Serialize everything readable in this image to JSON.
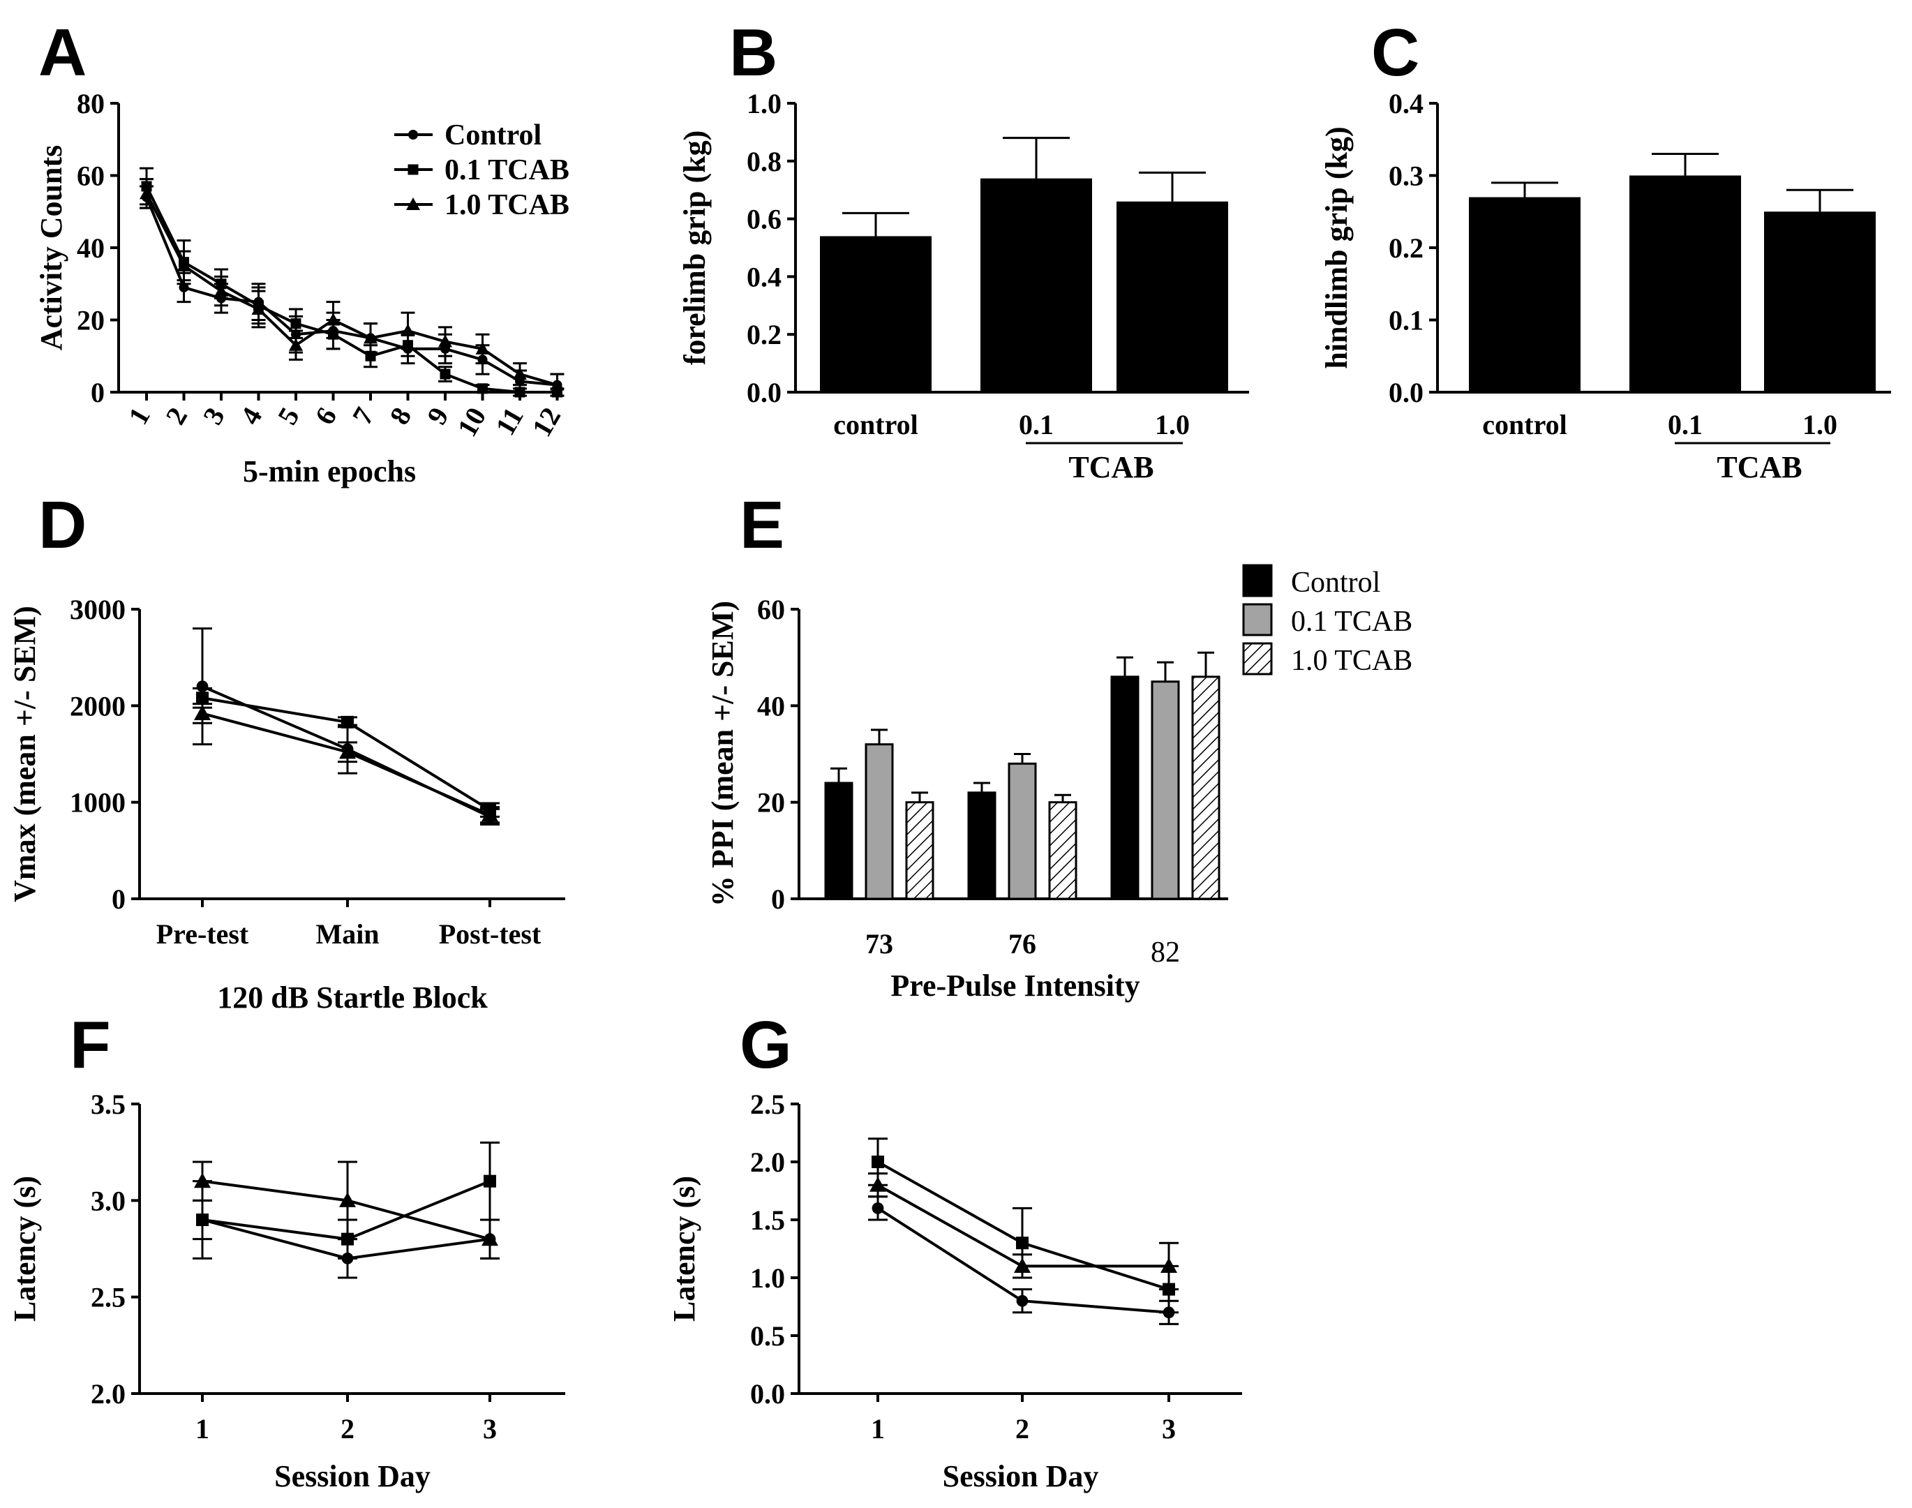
{
  "chart_data": [
    {
      "panel": "A",
      "type": "line",
      "xlabel": "5-min epochs",
      "ylabel": "Activity Counts",
      "ylim": [
        0,
        80
      ],
      "yticks": [
        0,
        20,
        40,
        60,
        80
      ],
      "x": [
        1,
        2,
        3,
        4,
        5,
        6,
        7,
        8,
        9,
        10,
        11,
        12
      ],
      "x_tick_labels": [
        "1",
        "2",
        "3",
        "4",
        "5",
        "6",
        "7",
        "8",
        "9",
        "10",
        "11",
        "12"
      ],
      "legend": "top-right",
      "series": [
        {
          "name": "Control",
          "marker": "circle",
          "values": [
            54,
            29,
            26,
            25,
            16,
            17,
            15,
            12,
            12,
            9,
            3,
            2
          ],
          "errors": [
            3,
            4,
            4,
            5,
            5,
            5,
            4,
            4,
            4,
            4,
            3,
            3
          ]
        },
        {
          "name": "0.1 TCAB",
          "marker": "square",
          "values": [
            57,
            36,
            30,
            24,
            19,
            16,
            10,
            13,
            5,
            1,
            0,
            0
          ],
          "errors": [
            5,
            6,
            4,
            5,
            4,
            4,
            3,
            3,
            2,
            1,
            1,
            1
          ]
        },
        {
          "name": "1.0 TCAB",
          "marker": "triangle",
          "values": [
            55,
            35,
            28,
            23,
            13,
            20,
            15,
            17,
            14,
            12,
            5,
            2
          ],
          "errors": [
            4,
            4,
            4,
            5,
            4,
            5,
            4,
            5,
            4,
            4,
            3,
            3
          ]
        }
      ]
    },
    {
      "panel": "B",
      "type": "bar",
      "ylabel": "forelimb grip (kg)",
      "ylim": [
        0,
        1.0
      ],
      "yticks": [
        "0.0",
        "0.2",
        "0.4",
        "0.6",
        "0.8",
        "1.0"
      ],
      "categories": [
        "control",
        "0.1",
        "1.0"
      ],
      "group_label": "TCAB",
      "values": [
        0.54,
        0.74,
        0.66
      ],
      "errors": [
        0.08,
        0.14,
        0.1
      ]
    },
    {
      "panel": "C",
      "type": "bar",
      "ylabel": "hindlimb grip (kg)",
      "ylim": [
        0,
        0.4
      ],
      "yticks": [
        "0.0",
        "0.1",
        "0.2",
        "0.3",
        "0.4"
      ],
      "categories": [
        "control",
        "0.1",
        "1.0"
      ],
      "group_label": "TCAB",
      "values": [
        0.27,
        0.3,
        0.25
      ],
      "errors": [
        0.02,
        0.03,
        0.03
      ]
    },
    {
      "panel": "D",
      "type": "line",
      "xlabel": "120 dB Startle Block",
      "ylabel": "Vmax (mean +/- SEM)",
      "ylim": [
        0,
        3000
      ],
      "yticks": [
        0,
        1000,
        2000,
        3000
      ],
      "categories": [
        "Pre-test",
        "Main",
        "Post-test"
      ],
      "series": [
        {
          "name": "Control",
          "marker": "circle",
          "values": [
            2200,
            1550,
            850
          ],
          "errors": [
            600,
            250,
            80
          ]
        },
        {
          "name": "0.1 TCAB",
          "marker": "square",
          "values": [
            2080,
            1830,
            920
          ],
          "errors": [
            100,
            50,
            70
          ]
        },
        {
          "name": "1.0 TCAB",
          "marker": "triangle",
          "values": [
            1920,
            1520,
            870
          ],
          "errors": [
            100,
            100,
            80
          ]
        }
      ]
    },
    {
      "panel": "E",
      "type": "bar",
      "xlabel": "Pre-Pulse Intensity",
      "ylabel": "% PPI (mean +/- SEM)",
      "ylim": [
        0,
        60
      ],
      "yticks": [
        0,
        20,
        40,
        60
      ],
      "categories": [
        "73",
        "76",
        "82"
      ],
      "legend": "top-right",
      "series": [
        {
          "name": "Control",
          "fill": "#000000",
          "values": [
            24,
            22,
            46
          ],
          "errors": [
            3,
            2,
            4
          ]
        },
        {
          "name": "0.1 TCAB",
          "fill": "#a3a3a3",
          "values": [
            32,
            28,
            45
          ],
          "errors": [
            3,
            2,
            4
          ]
        },
        {
          "name": "1.0 TCAB",
          "fill": "hatch",
          "values": [
            20,
            20,
            46
          ],
          "errors": [
            2,
            1.5,
            5
          ]
        }
      ]
    },
    {
      "panel": "F",
      "type": "line",
      "xlabel": "Session Day",
      "ylabel": "Latency (s)",
      "ylim": [
        2.0,
        3.5
      ],
      "yticks": [
        "2.0",
        "2.5",
        "3.0",
        "3.5"
      ],
      "categories": [
        "1",
        "2",
        "3"
      ],
      "series": [
        {
          "name": "Control",
          "marker": "circle",
          "values": [
            2.9,
            2.7,
            2.8
          ],
          "errors": [
            0.2,
            0.1,
            0.1
          ]
        },
        {
          "name": "0.1 TCAB",
          "marker": "square",
          "values": [
            2.9,
            2.8,
            3.1
          ],
          "errors": [
            0.1,
            0.1,
            0.2
          ]
        },
        {
          "name": "1.0 TCAB",
          "marker": "triangle",
          "values": [
            3.1,
            3.0,
            2.8
          ],
          "errors": [
            0.1,
            0.2,
            0.1
          ]
        }
      ]
    },
    {
      "panel": "G",
      "type": "line",
      "xlabel": "Session Day",
      "ylabel": "Latency (s)",
      "ylim": [
        0.0,
        2.5
      ],
      "yticks": [
        "0.0",
        "0.5",
        "1.0",
        "1.5",
        "2.0",
        "2.5"
      ],
      "categories": [
        "1",
        "2",
        "3"
      ],
      "series": [
        {
          "name": "Control",
          "marker": "circle",
          "values": [
            1.6,
            0.8,
            0.7
          ],
          "errors": [
            0.1,
            0.1,
            0.1
          ]
        },
        {
          "name": "0.1 TCAB",
          "marker": "square",
          "values": [
            2.0,
            1.3,
            0.9
          ],
          "errors": [
            0.2,
            0.3,
            0.2
          ]
        },
        {
          "name": "1.0 TCAB",
          "marker": "triangle",
          "values": [
            1.8,
            1.1,
            1.1
          ],
          "errors": [
            0.1,
            0.1,
            0.2
          ]
        }
      ]
    }
  ]
}
